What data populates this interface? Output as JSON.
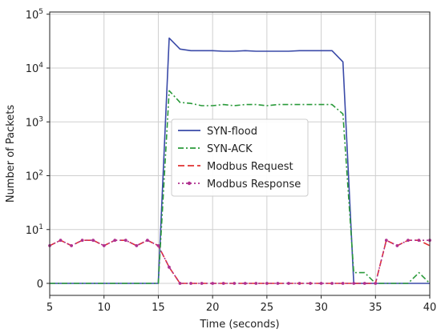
{
  "chart_data": {
    "type": "line",
    "xlabel": "Time (seconds)",
    "ylabel": "Number of Packets",
    "xlim": [
      5,
      40
    ],
    "y_scale": "symlog",
    "ylim": [
      0,
      100000
    ],
    "x_ticks": [
      5,
      10,
      15,
      20,
      25,
      30,
      35,
      40
    ],
    "x_tick_labels": [
      "5",
      "10",
      "15",
      "20",
      "25",
      "30",
      "35",
      "40"
    ],
    "y_ticks": [
      0,
      10,
      100,
      1000,
      10000,
      100000
    ],
    "y_tick_labels": [
      {
        "base": "0",
        "exp": ""
      },
      {
        "base": "10",
        "exp": "1"
      },
      {
        "base": "10",
        "exp": "2"
      },
      {
        "base": "10",
        "exp": "3"
      },
      {
        "base": "10",
        "exp": "4"
      },
      {
        "base": "10",
        "exp": "5"
      }
    ],
    "grid": true,
    "legend_position": "center",
    "x": [
      5,
      6,
      7,
      8,
      9,
      10,
      11,
      12,
      13,
      14,
      15,
      16,
      17,
      18,
      19,
      20,
      21,
      22,
      23,
      24,
      25,
      26,
      27,
      28,
      29,
      30,
      31,
      32,
      33,
      34,
      35,
      36,
      37,
      38,
      39,
      40
    ],
    "series": [
      {
        "name": "SYN-flood",
        "color": "#3a4aa8",
        "dash": "",
        "marker": "",
        "values": [
          0,
          0,
          0,
          0,
          0,
          0,
          0,
          0,
          0,
          0,
          0,
          36000,
          22500,
          21000,
          21000,
          21000,
          20500,
          20500,
          21000,
          20500,
          20500,
          20500,
          20500,
          21000,
          21000,
          21000,
          21000,
          13000,
          0,
          0,
          0,
          0,
          0,
          0,
          0,
          0
        ]
      },
      {
        "name": "SYN-ACK",
        "color": "#2a9a3a",
        "dash": "7,3,2,3",
        "marker": "",
        "values": [
          0,
          0,
          0,
          0,
          0,
          0,
          0,
          0,
          0,
          0,
          0,
          3800,
          2300,
          2200,
          2000,
          2000,
          2100,
          2000,
          2100,
          2100,
          2000,
          2100,
          2100,
          2100,
          2100,
          2100,
          2100,
          1400,
          2,
          2,
          0,
          0,
          0,
          0,
          2,
          0
        ]
      },
      {
        "name": "Modbus Request",
        "color": "#e03030",
        "dash": "8,4",
        "marker": "",
        "values": [
          7,
          8,
          7,
          8,
          8,
          7,
          8,
          8,
          7,
          8,
          7,
          3,
          0,
          0,
          0,
          0,
          0,
          0,
          0,
          0,
          0,
          0,
          0,
          0,
          0,
          0,
          0,
          0,
          0,
          0,
          0,
          8,
          7,
          8,
          8,
          7
        ]
      },
      {
        "name": "Modbus Response",
        "color": "#b0308f",
        "dash": "2,3",
        "marker": "dot",
        "values": [
          7,
          8,
          7,
          8,
          8,
          7,
          8,
          8,
          7,
          8,
          7,
          3,
          0,
          0,
          0,
          0,
          0,
          0,
          0,
          0,
          0,
          0,
          0,
          0,
          0,
          0,
          0,
          0,
          0,
          0,
          0,
          8,
          7,
          8,
          8,
          8
        ]
      }
    ]
  }
}
